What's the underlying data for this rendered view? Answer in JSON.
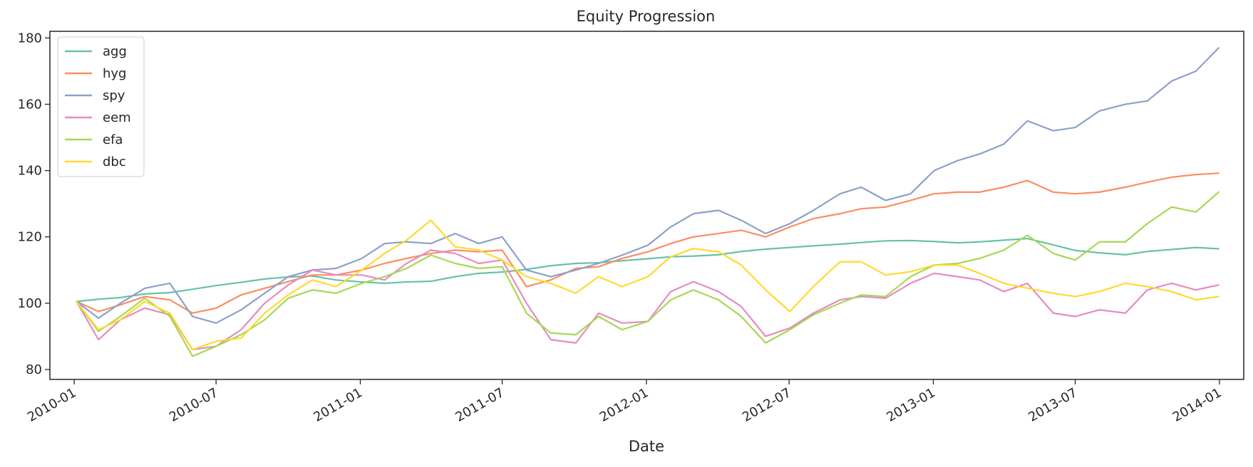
{
  "chart_data": {
    "type": "line",
    "title": "Equity Progression",
    "xlabel": "Date",
    "ylabel": "",
    "xlim": [
      "2009-12-01",
      "2014-02-01"
    ],
    "ylim": [
      77,
      182
    ],
    "x_ticks": [
      "2010-01",
      "2010-07",
      "2011-01",
      "2011-07",
      "2012-01",
      "2012-07",
      "2013-01",
      "2013-07",
      "2014-01"
    ],
    "y_ticks": [
      80,
      100,
      120,
      140,
      160,
      180
    ],
    "grid": false,
    "legend_position": "top-left",
    "x": [
      "2010-01-04",
      "2010-02-01",
      "2010-03-01",
      "2010-04-01",
      "2010-05-03",
      "2010-06-01",
      "2010-07-01",
      "2010-08-02",
      "2010-09-01",
      "2010-10-01",
      "2010-11-01",
      "2010-12-01",
      "2011-01-03",
      "2011-02-01",
      "2011-03-01",
      "2011-04-01",
      "2011-05-02",
      "2011-06-01",
      "2011-07-01",
      "2011-08-01",
      "2011-09-01",
      "2011-10-03",
      "2011-11-01",
      "2011-12-01",
      "2012-01-03",
      "2012-02-01",
      "2012-03-01",
      "2012-04-02",
      "2012-05-01",
      "2012-06-01",
      "2012-07-02",
      "2012-08-01",
      "2012-09-04",
      "2012-10-01",
      "2012-11-01",
      "2012-12-03",
      "2013-01-02",
      "2013-02-01",
      "2013-03-01",
      "2013-04-01",
      "2013-05-01",
      "2013-06-03",
      "2013-07-01",
      "2013-08-01",
      "2013-09-03",
      "2013-10-01",
      "2013-11-01",
      "2013-12-02",
      "2013-12-31"
    ],
    "series": [
      {
        "name": "agg",
        "color": "#66c2a5",
        "values": [
          100.5,
          101.2,
          101.7,
          102.8,
          103.2,
          104.2,
          105.3,
          106.3,
          107.3,
          107.9,
          108.2,
          107.0,
          106.4,
          106.0,
          106.4,
          106.6,
          108.0,
          109.0,
          109.4,
          110.2,
          111.3,
          112.0,
          112.2,
          112.8,
          113.4,
          114.0,
          114.2,
          114.6,
          115.6,
          116.3,
          116.8,
          117.3,
          117.8,
          118.3,
          118.8,
          118.9,
          118.6,
          118.2,
          118.5,
          119.0,
          119.5,
          117.6,
          115.9,
          115.2,
          114.6,
          115.6,
          116.2,
          116.8,
          116.4
        ]
      },
      {
        "name": "hyg",
        "color": "#fc8d62",
        "values": [
          100.5,
          97.5,
          99.5,
          102.0,
          101.0,
          97.0,
          98.5,
          102.5,
          104.5,
          106.5,
          108.5,
          108.5,
          110.0,
          112.0,
          113.5,
          115.0,
          116.0,
          115.5,
          116.0,
          105.0,
          107.0,
          110.5,
          111.0,
          113.5,
          115.5,
          118.0,
          120.0,
          121.0,
          122.0,
          120.0,
          123.0,
          125.5,
          127.0,
          128.5,
          129.0,
          131.0,
          133.0,
          133.5,
          133.5,
          135.0,
          137.0,
          133.5,
          133.0,
          133.5,
          135.0,
          136.5,
          138.0,
          138.8,
          139.2
        ]
      },
      {
        "name": "spy",
        "color": "#8da0cb",
        "values": [
          100.5,
          95.5,
          100.0,
          104.5,
          106.0,
          96.0,
          94.0,
          98.0,
          103.0,
          108.0,
          110.0,
          110.5,
          113.5,
          118.0,
          118.5,
          118.0,
          121.0,
          118.0,
          120.0,
          110.0,
          108.0,
          110.0,
          112.0,
          114.5,
          117.5,
          123.0,
          127.0,
          128.0,
          125.0,
          121.0,
          124.0,
          128.0,
          133.0,
          135.0,
          131.0,
          133.0,
          140.0,
          143.0,
          145.0,
          148.0,
          155.0,
          152.0,
          153.0,
          158.0,
          160.0,
          161.0,
          167.0,
          170.0,
          177.0
        ]
      },
      {
        "name": "eem",
        "color": "#e78ac3",
        "values": [
          100.5,
          89.0,
          95.0,
          98.5,
          96.5,
          86.0,
          87.0,
          92.0,
          100.0,
          105.5,
          110.0,
          108.5,
          108.5,
          107.0,
          112.0,
          116.0,
          115.0,
          112.0,
          113.0,
          100.0,
          89.0,
          88.0,
          97.0,
          94.0,
          94.5,
          103.5,
          106.5,
          103.5,
          99.0,
          90.0,
          92.5,
          97.0,
          101.0,
          102.0,
          101.5,
          106.0,
          109.0,
          108.0,
          107.0,
          103.5,
          106.0,
          97.0,
          96.0,
          98.0,
          97.0,
          104.0,
          106.0,
          104.0,
          105.5
        ]
      },
      {
        "name": "efa",
        "color": "#a6d854",
        "values": [
          100.5,
          91.5,
          96.0,
          101.5,
          96.0,
          84.0,
          87.0,
          90.5,
          95.0,
          101.5,
          104.0,
          103.0,
          106.0,
          108.0,
          110.5,
          114.5,
          112.0,
          110.5,
          111.0,
          97.0,
          91.0,
          90.5,
          96.0,
          92.0,
          94.5,
          101.0,
          104.0,
          101.0,
          96.0,
          88.0,
          92.0,
          96.5,
          100.0,
          102.5,
          102.0,
          108.0,
          111.5,
          112.0,
          113.5,
          116.0,
          120.5,
          115.0,
          113.0,
          118.5,
          118.5,
          124.0,
          129.0,
          127.5,
          133.5
        ]
      },
      {
        "name": "dbc",
        "color": "#ffd92f",
        "values": [
          100.5,
          92.0,
          95.0,
          100.5,
          97.0,
          86.0,
          88.5,
          89.5,
          97.0,
          102.5,
          107.0,
          105.0,
          110.0,
          115.0,
          119.0,
          125.0,
          117.0,
          116.0,
          113.0,
          108.0,
          106.0,
          103.0,
          108.0,
          105.0,
          108.0,
          114.0,
          116.5,
          115.5,
          111.5,
          104.0,
          97.5,
          105.0,
          112.5,
          112.5,
          108.5,
          109.5,
          111.5,
          111.5,
          109.0,
          106.0,
          104.5,
          103.0,
          102.0,
          103.5,
          106.0,
          105.0,
          103.5,
          101.0,
          102.0
        ]
      }
    ]
  }
}
